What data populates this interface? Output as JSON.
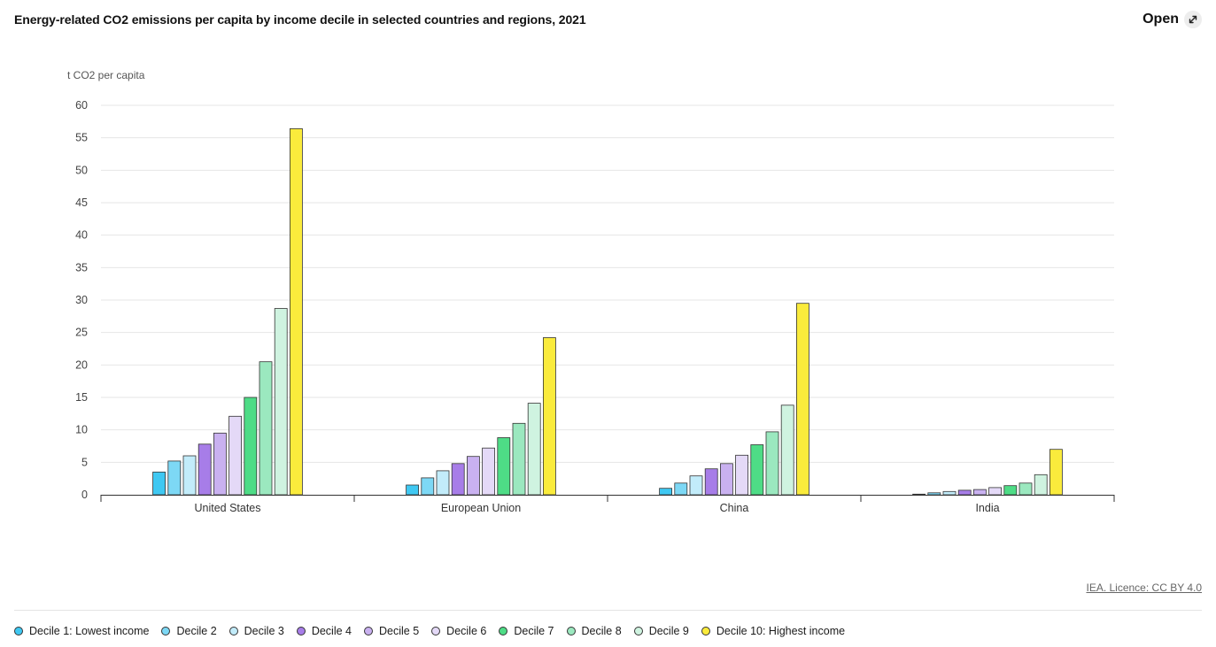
{
  "header": {
    "title": "Energy-related CO2 emissions per capita by income decile in selected countries and regions, 2021",
    "open_label": "Open",
    "open_icon": "expand-arrow-icon"
  },
  "footer": {
    "licence": "IEA. Licence: CC BY 4.0"
  },
  "colors": {
    "outline": "#333333",
    "grid": "#e6e6e6",
    "axis": "#333333"
  },
  "chart_data": {
    "type": "bar",
    "title": "Energy-related CO2 emissions per capita by income decile in selected countries and regions, 2021",
    "ylabel": "t CO2 per capita",
    "xlabel": "",
    "ylim": [
      0,
      60
    ],
    "yticks": [
      0,
      5,
      10,
      15,
      20,
      25,
      30,
      35,
      40,
      45,
      50,
      55,
      60
    ],
    "grid": true,
    "legend_position": "bottom",
    "categories": [
      "United States",
      "European Union",
      "China",
      "India"
    ],
    "series": [
      {
        "name": "Decile 1: Lowest income",
        "color": "#3fc8f2",
        "values": [
          3.5,
          1.5,
          1.0,
          0.1
        ]
      },
      {
        "name": "Decile 2",
        "color": "#7dd8f5",
        "values": [
          5.2,
          2.6,
          1.8,
          0.3
        ]
      },
      {
        "name": "Decile 3",
        "color": "#c2ecfa",
        "values": [
          6.0,
          3.7,
          2.9,
          0.5
        ]
      },
      {
        "name": "Decile 4",
        "color": "#a77de8",
        "values": [
          7.8,
          4.8,
          4.0,
          0.7
        ]
      },
      {
        "name": "Decile 5",
        "color": "#c9b1f0",
        "values": [
          9.5,
          5.9,
          4.8,
          0.8
        ]
      },
      {
        "name": "Decile 6",
        "color": "#e4d9f7",
        "values": [
          12.1,
          7.2,
          6.1,
          1.1
        ]
      },
      {
        "name": "Decile 7",
        "color": "#4edc86",
        "values": [
          15.0,
          8.8,
          7.7,
          1.4
        ]
      },
      {
        "name": "Decile 8",
        "color": "#9be8bf",
        "values": [
          20.5,
          11.0,
          9.7,
          1.8
        ]
      },
      {
        "name": "Decile 9",
        "color": "#cff3e0",
        "values": [
          28.7,
          14.1,
          13.8,
          3.1
        ]
      },
      {
        "name": "Decile 10: Highest income",
        "color": "#faeb3c",
        "values": [
          56.4,
          24.2,
          29.5,
          7.0
        ]
      }
    ]
  }
}
